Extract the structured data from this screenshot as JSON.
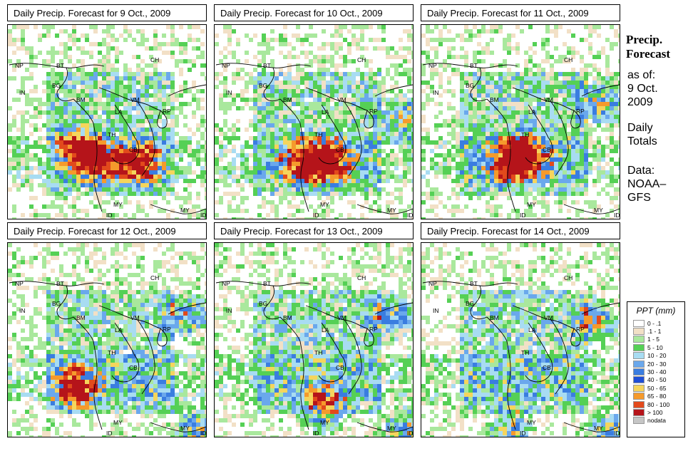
{
  "panels": [
    {
      "title": "Daily Precip. Forecast for  9 Oct., 2009"
    },
    {
      "title": "Daily Precip. Forecast for  10 Oct., 2009"
    },
    {
      "title": "Daily Precip. Forecast for  11 Oct., 2009"
    },
    {
      "title": "Daily Precip. Forecast for  12 Oct., 2009"
    },
    {
      "title": "Daily Precip. Forecast for  13 Oct., 2009"
    },
    {
      "title": "Daily Precip. Forecast for  14 Oct., 2009"
    }
  ],
  "map_labels": {
    "np": "NP",
    "bt": "BT",
    "bg": "BG",
    "in": "IN",
    "bm": "BM",
    "ch": "CH",
    "vm": "VM",
    "la": "LA",
    "th": "TH",
    "cb": "CB",
    "my": "MY",
    "my2": "MY",
    "id": "ID",
    "id2": "ID",
    "rp": "RP"
  },
  "sidebar": {
    "heading_line1": "Precip.",
    "heading_line2": "Forecast",
    "as_of": "as of:",
    "date_line1": "9 Oct.",
    "date_line2": "2009",
    "totals_line1": "Daily",
    "totals_line2": "Totals",
    "data_line1": "Data:",
    "data_line2": "NOAA–",
    "data_line3": "GFS"
  },
  "legend": {
    "title": "PPT (mm)",
    "items": [
      {
        "label": "0 - .1",
        "color": "#ffffff"
      },
      {
        "label": ".1 - 1",
        "color": "#f2e0c6"
      },
      {
        "label": "1 - 5",
        "color": "#a9e89d"
      },
      {
        "label": "5 - 10",
        "color": "#55d055"
      },
      {
        "label": "10 - 20",
        "color": "#a8dcf2"
      },
      {
        "label": "20 - 30",
        "color": "#6aa8ec"
      },
      {
        "label": "30 - 40",
        "color": "#3a7de0"
      },
      {
        "label": "40 - 50",
        "color": "#1f4fd6"
      },
      {
        "label": "50 - 65",
        "color": "#f5d55c"
      },
      {
        "label": "65 - 80",
        "color": "#f59a2c"
      },
      {
        "label": "80 - 100",
        "color": "#e24a1c"
      },
      {
        "label": "> 100",
        "color": "#b5141a"
      },
      {
        "label": "nodata",
        "color": "#c6c6c6"
      }
    ]
  }
}
